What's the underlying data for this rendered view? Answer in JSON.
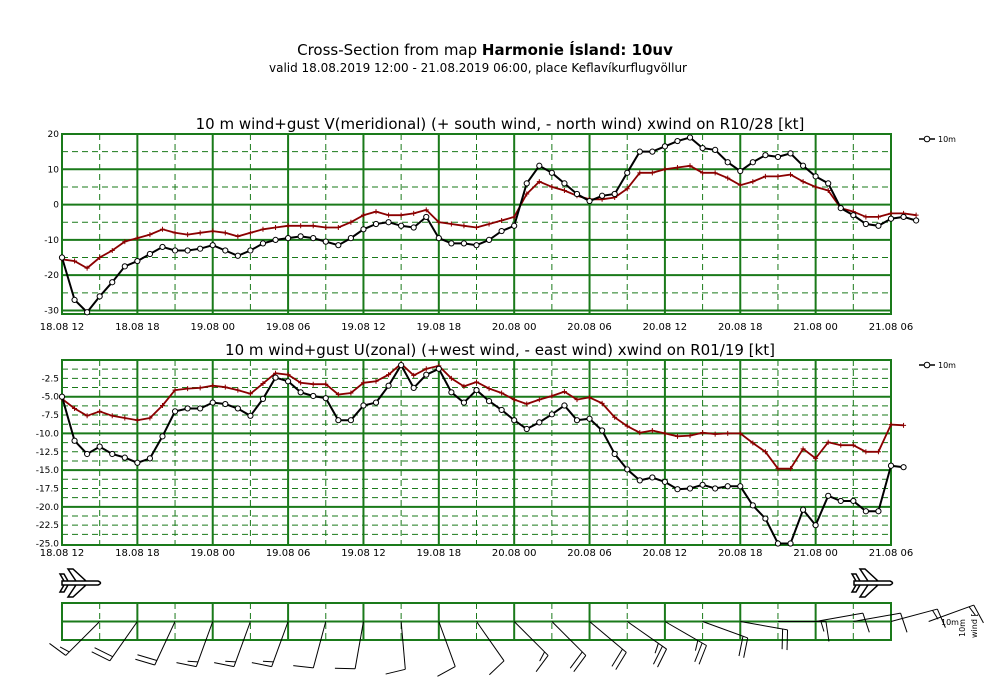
{
  "header": {
    "title_prefix": "Cross-Section from map ",
    "title_bold": "Harmonie Ísland: 10uv",
    "subtitle": "valid 18.08.2019 12:00 - 21.08.2019 06:00, place Keflavíkurflugvöllur"
  },
  "colors": {
    "grid": "#1a7a1a",
    "series10m": "#000000",
    "gust": "#8b0000"
  },
  "chart_data": [
    {
      "type": "line",
      "title": "10 m wind+gust V(meridional) (+ south wind, - north wind) xwind on R10/28 [kt]",
      "x_tick_labels": [
        "18.08 12",
        "18.08 18",
        "19.08 00",
        "19.08 06",
        "19.08 12",
        "19.08 18",
        "20.08 00",
        "20.08 06",
        "20.08 12",
        "20.08 18",
        "21.08 00",
        "21.08 06"
      ],
      "x_range_hours": [
        0,
        66
      ],
      "ylim": [
        -31,
        20
      ],
      "y_ticks": [
        20,
        10,
        0,
        -10,
        -20,
        -30
      ],
      "legend": "10m",
      "series": [
        {
          "name": "10m",
          "marker": "circle",
          "values": [
            -15,
            -27,
            -30.5,
            -26,
            -22,
            -17.5,
            -16,
            -14,
            -12,
            -13,
            -13,
            -12.5,
            -11.5,
            -13,
            -14.5,
            -13,
            -11,
            -10,
            -9.5,
            -9,
            -9.5,
            -10.5,
            -11.5,
            -9.5,
            -7,
            -5.5,
            -5,
            -6,
            -6.5,
            -3.5,
            -9.5,
            -11,
            -11,
            -11.5,
            -10,
            -7.5,
            -6,
            6,
            11,
            9,
            6,
            3,
            1,
            2.5,
            3,
            9,
            15,
            15,
            16.5,
            18,
            19,
            16,
            15.5,
            12,
            9.5,
            12,
            14,
            13.5,
            14.5,
            11,
            8,
            6,
            -1,
            -3,
            -5.5,
            -6,
            -4,
            -3.5,
            -4.5
          ]
        },
        {
          "name": "gust",
          "marker": "plus",
          "values": [
            -15.5,
            -16,
            -18,
            -15,
            -13,
            -10.5,
            -9.5,
            -8.5,
            -7,
            -8,
            -8.5,
            -8,
            -7.5,
            -8,
            -9,
            -8,
            -7,
            -6.5,
            -6,
            -6,
            -6,
            -6.5,
            -6.5,
            -5,
            -3,
            -2,
            -3,
            -3,
            -2.5,
            -1.5,
            -5,
            -5.5,
            -6,
            -6.5,
            -5.5,
            -4.5,
            -3.5,
            3,
            6.5,
            5,
            4,
            2.5,
            1.5,
            1.5,
            2,
            4.5,
            9,
            9,
            10,
            10.5,
            11,
            9,
            9,
            7.5,
            5.5,
            6.5,
            8,
            8,
            8.5,
            6.5,
            5,
            4,
            -1,
            -2,
            -3.5,
            -3.5,
            -2.5,
            -2.5,
            -3
          ]
        }
      ]
    },
    {
      "type": "line",
      "title": "10 m wind+gust U(zonal) (+west wind, - east wind) xwind on R01/19 [kt]",
      "x_tick_labels": [
        "18.08 12",
        "18.08 18",
        "19.08 00",
        "19.08 06",
        "19.08 12",
        "19.08 18",
        "20.08 00",
        "20.08 06",
        "20.08 12",
        "20.08 18",
        "21.08 00",
        "21.08 06"
      ],
      "x_range_hours": [
        0,
        66
      ],
      "ylim": [
        -25.2,
        0
      ],
      "y_ticks": [
        "-2.5",
        "-5.0",
        "-7.5",
        "-10.0",
        "-12.5",
        "-15.0",
        "-17.5",
        "-20.0",
        "-22.5",
        "-25.0"
      ],
      "legend": "10m",
      "series": [
        {
          "name": "10m",
          "marker": "circle",
          "values": [
            -5,
            -11,
            -12.8,
            -11.8,
            -12.8,
            -13.3,
            -14,
            -13.4,
            -10.4,
            -7,
            -6.6,
            -6.6,
            -5.8,
            -6,
            -6.6,
            -7.6,
            -5.3,
            -2.4,
            -2.9,
            -4.4,
            -4.9,
            -5.2,
            -8.2,
            -8.2,
            -6.2,
            -5.8,
            -3.5,
            -0.7,
            -3.8,
            -2,
            -1.2,
            -4.4,
            -5.8,
            -4.1,
            -5.6,
            -6.8,
            -8.2,
            -9.4,
            -8.5,
            -7.4,
            -6.2,
            -8.2,
            -8,
            -9.6,
            -12.8,
            -14.9,
            -16.4,
            -16,
            -16.6,
            -17.6,
            -17.5,
            -17,
            -17.5,
            -17.2,
            -17.2,
            -19.8,
            -21.6,
            -25,
            -25,
            -20.4,
            -22.5,
            -18.5,
            -19.2,
            -19.2,
            -20.6,
            -20.6,
            -14.4,
            -14.6
          ]
        },
        {
          "name": "gust",
          "marker": "plus",
          "values": [
            -5.3,
            -6.6,
            -7.6,
            -7,
            -7.6,
            -7.9,
            -8.2,
            -7.9,
            -6.2,
            -4.1,
            -3.9,
            -3.8,
            -3.5,
            -3.7,
            -4.1,
            -4.6,
            -3.2,
            -1.8,
            -2,
            -3.1,
            -3.3,
            -3.3,
            -4.7,
            -4.5,
            -3.1,
            -2.9,
            -2,
            -0.5,
            -2.1,
            -1.2,
            -0.8,
            -2.5,
            -3.6,
            -3,
            -3.9,
            -4.5,
            -5.4,
            -6,
            -5.4,
            -4.9,
            -4.3,
            -5.4,
            -5.1,
            -5.9,
            -7.8,
            -9,
            -9.9,
            -9.6,
            -10,
            -10.4,
            -10.3,
            -9.9,
            -10.1,
            -10,
            -10,
            -11.3,
            -12.5,
            -14.8,
            -14.8,
            -12.1,
            -13.4,
            -11.2,
            -11.6,
            -11.6,
            -12.5,
            -12.5,
            -8.8,
            -8.9
          ]
        }
      ]
    },
    {
      "type": "wind_barbs",
      "legend": "10m",
      "ylabel": "wind [",
      "x_tick_labels": [
        "18.08 12",
        "18.08 18",
        "19.08 00",
        "19.08 06",
        "19.08 12",
        "19.08 18",
        "20.08 00",
        "20.08 06",
        "20.08 12",
        "20.08 18",
        "21.08 00",
        "21.08 06"
      ],
      "barbs_every_hours": 3,
      "barbs": [
        {
          "dir_deg": 225,
          "speed_kt": 15
        },
        {
          "dir_deg": 215,
          "speed_kt": 20
        },
        {
          "dir_deg": 205,
          "speed_kt": 20
        },
        {
          "dir_deg": 200,
          "speed_kt": 15
        },
        {
          "dir_deg": 200,
          "speed_kt": 15
        },
        {
          "dir_deg": 200,
          "speed_kt": 15
        },
        {
          "dir_deg": 195,
          "speed_kt": 10
        },
        {
          "dir_deg": 190,
          "speed_kt": 10
        },
        {
          "dir_deg": 175,
          "speed_kt": 10
        },
        {
          "dir_deg": 160,
          "speed_kt": 10
        },
        {
          "dir_deg": 145,
          "speed_kt": 10
        },
        {
          "dir_deg": 135,
          "speed_kt": 15
        },
        {
          "dir_deg": 135,
          "speed_kt": 20
        },
        {
          "dir_deg": 130,
          "speed_kt": 20
        },
        {
          "dir_deg": 125,
          "speed_kt": 25
        },
        {
          "dir_deg": 120,
          "speed_kt": 25
        },
        {
          "dir_deg": 110,
          "speed_kt": 20
        },
        {
          "dir_deg": 100,
          "speed_kt": 20
        },
        {
          "dir_deg": 90,
          "speed_kt": 15
        },
        {
          "dir_deg": 80,
          "speed_kt": 10
        },
        {
          "dir_deg": 80,
          "speed_kt": 10
        },
        {
          "dir_deg": 75,
          "speed_kt": 15
        },
        {
          "dir_deg": 70,
          "speed_kt": 15
        }
      ]
    }
  ]
}
